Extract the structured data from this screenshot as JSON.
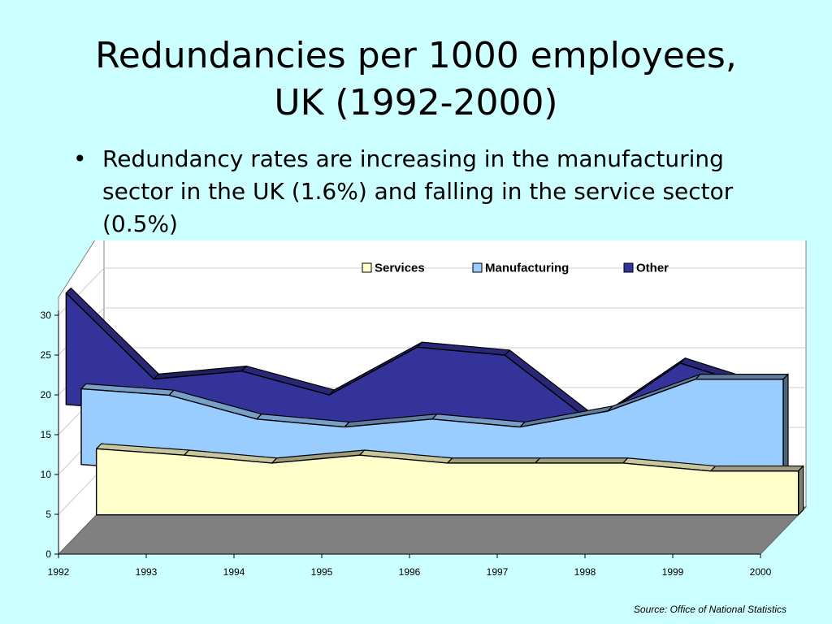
{
  "slide": {
    "title_lines": [
      "Redundancies per 1000 employees,",
      "UK (1992-2000)"
    ],
    "bullets": [
      "Redundancy rates are increasing in the manufacturing sector in the UK (1.6%) and falling in the service sector (0.5%)"
    ],
    "bullet_symbol": "•",
    "source": "Source: Office of National Statistics"
  },
  "chart_data": {
    "type": "area",
    "stacked": true,
    "three_d": true,
    "categories": [
      "1992",
      "1993",
      "1994",
      "1995",
      "1996",
      "1997",
      "1998",
      "1999",
      "2000"
    ],
    "series": [
      {
        "name": "Services",
        "values": [
          8.3,
          7.5,
          6.5,
          7.5,
          6.5,
          6.5,
          6.5,
          5.5,
          5.5
        ],
        "color": "#ffffcc"
      },
      {
        "name": "Manufacturing",
        "values": [
          9.5,
          9.5,
          7.5,
          5.5,
          7.5,
          6.5,
          8.5,
          13.5,
          13.5
        ],
        "color": "#99ccff"
      },
      {
        "name": "Other",
        "values": [
          14.0,
          4.0,
          8.0,
          6.0,
          11.0,
          11.0,
          0.5,
          4.0,
          0.5
        ],
        "color": "#333399"
      }
    ],
    "yticks": [
      0,
      5,
      10,
      15,
      20,
      25,
      30
    ],
    "ylim": [
      0,
      30
    ],
    "xlabel": "",
    "ylabel": "",
    "grid": true,
    "legend_position": "top"
  }
}
